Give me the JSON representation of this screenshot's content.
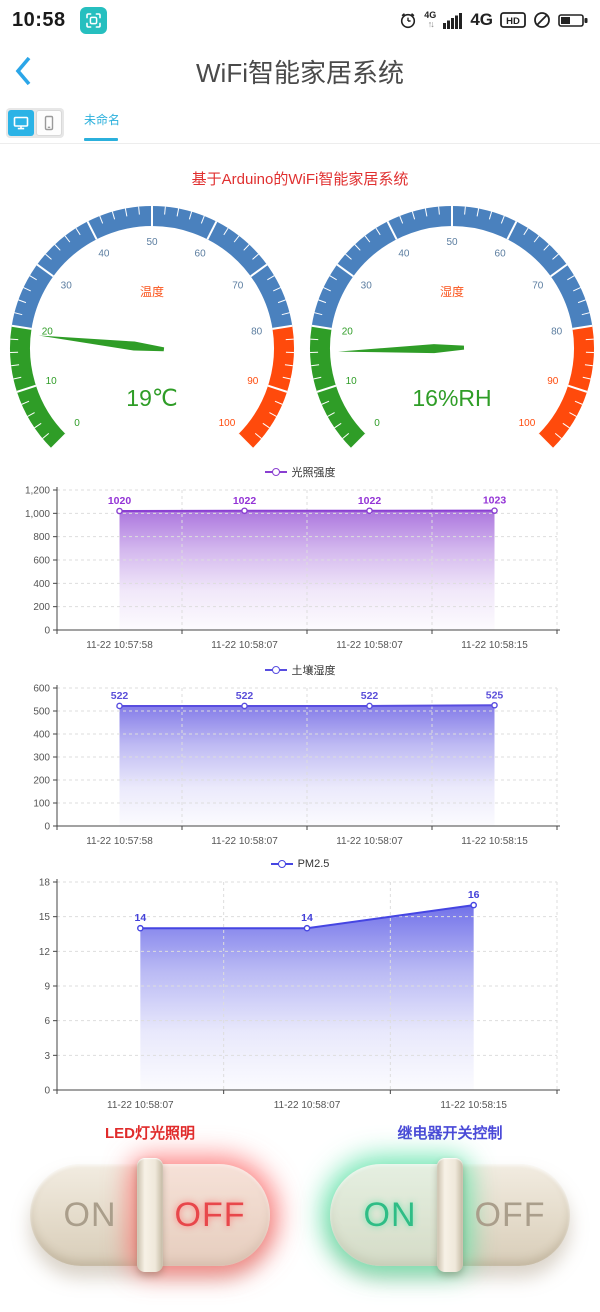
{
  "status_bar": {
    "time": "10:58",
    "scan_icon_color": "#26bfbf",
    "network_small": "4G",
    "network_arrows": "↑↓",
    "network_label": "4G",
    "hd_label": "HD",
    "icon_color": "#222222"
  },
  "header": {
    "title": "WiFi智能家居系统",
    "back_color": "#2ba6e8"
  },
  "tab_bar": {
    "tab_label": "未命名",
    "accent": "#2bb0dc"
  },
  "page_title": {
    "text": "基于Arduino的WiFi智能家居系统",
    "color": "#e03030"
  },
  "gauges": [
    {
      "name": "温度",
      "display_value": "19℃",
      "value": 19,
      "min": 0,
      "max": 100,
      "tick_labels": [
        "0",
        "10",
        "20",
        "30",
        "40",
        "50",
        "60",
        "70",
        "80",
        "90",
        "100"
      ],
      "segments": [
        {
          "to": 20,
          "color": "#2f9d27"
        },
        {
          "to": 80,
          "color": "#4a81be"
        },
        {
          "to": 100,
          "color": "#ff4a0c"
        }
      ],
      "label_color_mid": "#5b7da0",
      "name_color": "#fa541c",
      "value_color": "#2f9d27",
      "needle_color": "#2f9d27"
    },
    {
      "name": "湿度",
      "display_value": "16%RH",
      "value": 16,
      "min": 0,
      "max": 100,
      "tick_labels": [
        "0",
        "10",
        "20",
        "30",
        "40",
        "50",
        "60",
        "70",
        "80",
        "90",
        "100"
      ],
      "segments": [
        {
          "to": 20,
          "color": "#2f9d27"
        },
        {
          "to": 80,
          "color": "#4a81be"
        },
        {
          "to": 100,
          "color": "#ff4a0c"
        }
      ],
      "label_color_mid": "#5b7da0",
      "name_color": "#fa541c",
      "value_color": "#2f9d27",
      "needle_color": "#2f9d27"
    }
  ],
  "chart_data": [
    {
      "type": "area",
      "name": "光照强度",
      "color": "#8a3fd1",
      "label_color": "#9333d6",
      "categories": [
        "11-22 10:57:58",
        "11-22 10:58:07",
        "11-22 10:58:07",
        "11-22 10:58:15"
      ],
      "values": [
        1020,
        1022,
        1022,
        1023
      ],
      "ylim": [
        0,
        1200
      ],
      "yticks": [
        0,
        200,
        400,
        600,
        800,
        1000,
        1200
      ],
      "ytick_labels": [
        "0",
        "200",
        "400",
        "600",
        "800",
        "1,000",
        "1,200"
      ],
      "grid": true,
      "legend_position": "top"
    },
    {
      "type": "area",
      "name": "土壤湿度",
      "color": "#584de0",
      "label_color": "#5b4fd9",
      "categories": [
        "11-22 10:57:58",
        "11-22 10:58:07",
        "11-22 10:58:07",
        "11-22 10:58:15"
      ],
      "values": [
        522,
        522,
        522,
        525
      ],
      "ylim": [
        0,
        600
      ],
      "yticks": [
        0,
        100,
        200,
        300,
        400,
        500,
        600
      ],
      "ytick_labels": [
        "0",
        "100",
        "200",
        "300",
        "400",
        "500",
        "600"
      ],
      "grid": true,
      "legend_position": "top"
    },
    {
      "type": "area",
      "name": "PM2.5",
      "color": "#4545e2",
      "label_color": "#4340d9",
      "categories": [
        "11-22 10:58:07",
        "11-22 10:58:07",
        "11-22 10:58:15"
      ],
      "values": [
        14,
        14,
        16
      ],
      "ylim": [
        0,
        18
      ],
      "yticks": [
        0,
        3,
        6,
        9,
        12,
        15,
        18
      ],
      "ytick_labels": [
        "0",
        "3",
        "6",
        "9",
        "12",
        "15",
        "18"
      ],
      "grid": true,
      "legend_position": "top"
    }
  ],
  "switches": [
    {
      "label": "LED灯光照明",
      "label_color": "#e02b2b",
      "on_label": "ON",
      "off_label": "OFF",
      "state": "OFF",
      "active_color": "#e8474b",
      "glow_color": "rgba(255,96,96,0.75)",
      "halo_tint": "rgba(255,205,200,0.35)",
      "inactive_color": "#aa9e8b"
    },
    {
      "label": "继电器开关控制",
      "label_color": "#4a49d8",
      "on_label": "ON",
      "off_label": "OFF",
      "state": "ON",
      "active_color": "#2fbd86",
      "glow_color": "rgba(82,226,164,0.8)",
      "halo_tint": "rgba(205,245,225,0.35)",
      "inactive_color": "#aa9e8b"
    }
  ]
}
